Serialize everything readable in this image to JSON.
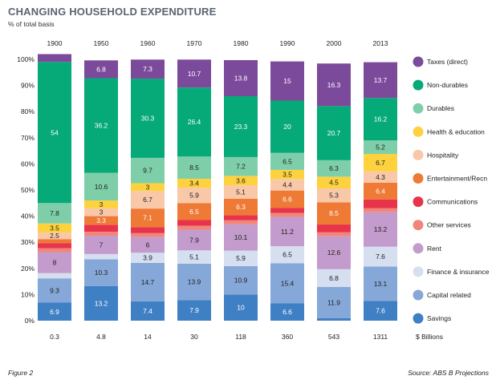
{
  "title": "CHANGING HOUSEHOLD  EXPENDITURE",
  "subtitle": "% of total basis",
  "footer": {
    "figure": "Figure 2",
    "source": "Source: ABS B Projections"
  },
  "chart_data": {
    "type": "bar",
    "stacked": true,
    "categories": [
      "1900",
      "1950",
      "1960",
      "1970",
      "1980",
      "1990",
      "2000",
      "2013"
    ],
    "bottom_labels": [
      "0.3",
      "4.8",
      "14",
      "30",
      "118",
      "360",
      "543",
      "1311"
    ],
    "bottom_unit": "$ Billions",
    "y_ticks": [
      "0%",
      "10%",
      "20%",
      "30%",
      "40%",
      "50%",
      "60%",
      "70%",
      "80%",
      "90%",
      "100%"
    ],
    "ylim": [
      0,
      100
    ],
    "grid": false,
    "legend_position": "right",
    "series": [
      {
        "name": "Savings",
        "color": "#3f7fc4",
        "values": [
          6.9,
          13.2,
          7.4,
          7.9,
          10,
          6.6,
          1.0,
          7.6
        ],
        "labels": [
          "6.9",
          "13.2",
          "7.4",
          "7.9",
          "10",
          "6.6",
          "",
          "7.6"
        ]
      },
      {
        "name": "Capital related",
        "color": "#86a8d8",
        "values": [
          9.3,
          10.3,
          14.7,
          13.9,
          10.9,
          15.4,
          11.9,
          13.1
        ],
        "labels": [
          "9.3",
          "10.3",
          "14.7",
          "13.9",
          "10.9",
          "15.4",
          "11.9",
          "13.1"
        ]
      },
      {
        "name": "Finance & insurance",
        "color": "#d5dff0",
        "values": [
          2.0,
          2.0,
          3.9,
          5.1,
          5.9,
          6.5,
          6.8,
          7.6
        ],
        "labels": [
          "",
          "",
          "3.9",
          "5.1",
          "5.9",
          "6.5",
          "6.8",
          "7.6"
        ]
      },
      {
        "name": "Rent",
        "color": "#c39bcc",
        "values": [
          8,
          7,
          6,
          7.9,
          10.1,
          11.2,
          12.6,
          13.2
        ],
        "labels": [
          "8",
          "7",
          "6",
          "7.9",
          "10.1",
          "11.2",
          "12.6",
          "13.2"
        ]
      },
      {
        "name": "Other services",
        "color": "#f0857a",
        "values": [
          1.5,
          1.5,
          1.5,
          1.5,
          1.5,
          1.5,
          1.5,
          1.5
        ],
        "labels": [
          "",
          "",
          "",
          "",
          "",
          "",
          "",
          ""
        ]
      },
      {
        "name": "Communications",
        "color": "#e8344a",
        "values": [
          2.0,
          2.7,
          2.3,
          2.2,
          2.0,
          2.0,
          3.0,
          3.4
        ],
        "labels": [
          "",
          "",
          "",
          "",
          "",
          "",
          "",
          ""
        ]
      },
      {
        "name": "Entertainment/Recn",
        "color": "#ee7a36",
        "values": [
          1.5,
          3.3,
          7.1,
          6.5,
          6.3,
          6.6,
          8.5,
          6.4
        ],
        "labels": [
          "",
          "3.3",
          "7.1",
          "6.5",
          "6.3",
          "6.6",
          "8.5",
          "6.4"
        ]
      },
      {
        "name": "Hospitality",
        "color": "#f9c8a8",
        "values": [
          2.5,
          3,
          6.7,
          5.9,
          5.1,
          4.4,
          5.3,
          4.3
        ],
        "labels": [
          "2.5",
          "3",
          "6.7",
          "5.9",
          "5.1",
          "4.4",
          "5.3",
          "4.3"
        ]
      },
      {
        "name": "Health & education",
        "color": "#fdd23e",
        "values": [
          3.5,
          3,
          3,
          3.4,
          3.6,
          3.5,
          4.5,
          6.7
        ],
        "labels": [
          "3.5",
          "3",
          "3",
          "3.4",
          "3.6",
          "3.5",
          "4.5",
          "6.7"
        ]
      },
      {
        "name": "Durables",
        "color": "#7ecfa9",
        "values": [
          7.8,
          10.6,
          9.7,
          8.5,
          7.2,
          6.5,
          6.3,
          5.2
        ],
        "labels": [
          "7.8",
          "10.6",
          "9.7",
          "8.5",
          "7.2",
          "6.5",
          "6.3",
          "5.2"
        ]
      },
      {
        "name": "Non-durables",
        "color": "#06a978",
        "values": [
          54,
          36.2,
          30.3,
          26.4,
          23.3,
          20,
          20.7,
          16.2
        ],
        "labels": [
          "54",
          "36.2",
          "30.3",
          "26.4",
          "23.3",
          "20",
          "20.7",
          "16.2"
        ]
      },
      {
        "name": "Taxes (direct)",
        "color": "#7b4a9b",
        "values": [
          3,
          6.8,
          7.3,
          10.7,
          13.8,
          15,
          16.3,
          13.7
        ],
        "labels": [
          "",
          "6.8",
          "7.3",
          "10.7",
          "13.8",
          "15",
          "16.3",
          "13.7"
        ]
      }
    ],
    "legend": [
      "Taxes (direct)",
      "Non-durables",
      "Durables",
      "Health & education",
      "Hospitality",
      "Entertainment/Recn",
      "Communications",
      "Other services",
      "Rent",
      "Finance & insurance",
      "Capital related",
      "Savings"
    ]
  }
}
